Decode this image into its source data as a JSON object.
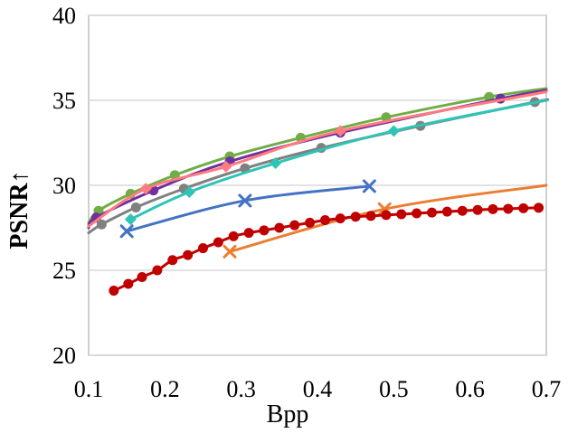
{
  "chart_data": {
    "type": "line",
    "title": "",
    "xlabel": "Bpp",
    "ylabel": "PSNR↑",
    "xlim": [
      0.1,
      0.7
    ],
    "ylim": [
      20,
      40
    ],
    "xticks": [
      "0.1",
      "0.2",
      "0.3",
      "0.4",
      "0.5",
      "0.6",
      "0.7"
    ],
    "yticks": [
      "20",
      "25",
      "30",
      "35",
      "40"
    ],
    "grid": "horizontal",
    "legend": "none",
    "series": [
      {
        "name": "green",
        "color": "#70ad47",
        "marker": "circle",
        "points": [
          [
            0.1,
            27.8
          ],
          [
            0.113,
            28.5
          ],
          [
            0.155,
            29.5
          ],
          [
            0.213,
            30.6
          ],
          [
            0.285,
            31.7
          ],
          [
            0.378,
            32.8
          ],
          [
            0.49,
            34.0
          ],
          [
            0.625,
            35.2
          ],
          [
            0.7,
            35.7
          ]
        ],
        "markers": [
          [
            0.113,
            28.5
          ],
          [
            0.155,
            29.5
          ],
          [
            0.213,
            30.6
          ],
          [
            0.285,
            31.7
          ],
          [
            0.378,
            32.8
          ],
          [
            0.49,
            34.0
          ],
          [
            0.625,
            35.2
          ]
        ]
      },
      {
        "name": "purple",
        "color": "#7030a0",
        "marker": "circle",
        "points": [
          [
            0.1,
            27.5
          ],
          [
            0.11,
            28.1
          ],
          [
            0.185,
            29.7
          ],
          [
            0.285,
            31.4
          ],
          [
            0.43,
            33.1
          ],
          [
            0.64,
            35.1
          ],
          [
            0.7,
            35.6
          ]
        ],
        "markers": [
          [
            0.11,
            28.1
          ],
          [
            0.185,
            29.7
          ],
          [
            0.285,
            31.4
          ],
          [
            0.43,
            33.1
          ],
          [
            0.64,
            35.1
          ]
        ]
      },
      {
        "name": "pink",
        "color": "#ff7c80",
        "marker": "diamond",
        "points": [
          [
            0.1,
            27.6
          ],
          [
            0.175,
            29.8
          ],
          [
            0.28,
            31.1
          ],
          [
            0.43,
            33.2
          ],
          [
            0.7,
            35.5
          ]
        ],
        "markers": [
          [
            0.175,
            29.8
          ],
          [
            0.28,
            31.1
          ],
          [
            0.43,
            33.2
          ]
        ]
      },
      {
        "name": "gray",
        "color": "#808080",
        "marker": "circle",
        "points": [
          [
            0.1,
            27.2
          ],
          [
            0.117,
            27.7
          ],
          [
            0.162,
            28.7
          ],
          [
            0.225,
            29.8
          ],
          [
            0.305,
            31.0
          ],
          [
            0.405,
            32.2
          ],
          [
            0.535,
            33.5
          ],
          [
            0.685,
            34.9
          ],
          [
            0.7,
            35.0
          ]
        ],
        "markers": [
          [
            0.117,
            27.7
          ],
          [
            0.162,
            28.7
          ],
          [
            0.225,
            29.8
          ],
          [
            0.305,
            31.0
          ],
          [
            0.405,
            32.2
          ],
          [
            0.535,
            33.5
          ],
          [
            0.685,
            34.9
          ]
        ]
      },
      {
        "name": "teal",
        "color": "#2ec4b6",
        "marker": "diamond",
        "points": [
          [
            0.155,
            28.0
          ],
          [
            0.232,
            29.6
          ],
          [
            0.345,
            31.3
          ],
          [
            0.5,
            33.2
          ],
          [
            0.7,
            35.0
          ]
        ],
        "markers": [
          [
            0.155,
            28.0
          ],
          [
            0.232,
            29.6
          ],
          [
            0.345,
            31.3
          ],
          [
            0.5,
            33.2
          ]
        ]
      },
      {
        "name": "blue",
        "color": "#4472c4",
        "marker": "x",
        "points": [
          [
            0.15,
            27.3
          ],
          [
            0.305,
            29.1
          ],
          [
            0.468,
            29.95
          ]
        ],
        "markers": [
          [
            0.15,
            27.3
          ],
          [
            0.305,
            29.1
          ],
          [
            0.468,
            29.95
          ]
        ]
      },
      {
        "name": "orange",
        "color": "#ed7d31",
        "marker": "x",
        "points": [
          [
            0.285,
            26.1
          ],
          [
            0.488,
            28.6
          ],
          [
            0.7,
            30.0
          ]
        ],
        "markers": [
          [
            0.285,
            26.1
          ],
          [
            0.488,
            28.6
          ]
        ]
      },
      {
        "name": "red",
        "color": "#c00000",
        "marker": "circle",
        "points": [
          [
            0.133,
            23.8
          ],
          [
            0.152,
            24.2
          ],
          [
            0.17,
            24.6
          ],
          [
            0.19,
            25.0
          ],
          [
            0.21,
            25.6
          ],
          [
            0.23,
            25.9
          ],
          [
            0.25,
            26.3
          ],
          [
            0.27,
            26.65
          ],
          [
            0.29,
            27.0
          ],
          [
            0.31,
            27.2
          ],
          [
            0.33,
            27.35
          ],
          [
            0.35,
            27.5
          ],
          [
            0.37,
            27.65
          ],
          [
            0.39,
            27.8
          ],
          [
            0.41,
            27.95
          ],
          [
            0.43,
            28.05
          ],
          [
            0.45,
            28.15
          ],
          [
            0.47,
            28.2
          ],
          [
            0.49,
            28.25
          ],
          [
            0.51,
            28.3
          ],
          [
            0.53,
            28.35
          ],
          [
            0.55,
            28.4
          ],
          [
            0.57,
            28.45
          ],
          [
            0.59,
            28.5
          ],
          [
            0.61,
            28.55
          ],
          [
            0.63,
            28.6
          ],
          [
            0.65,
            28.62
          ],
          [
            0.67,
            28.65
          ],
          [
            0.69,
            28.68
          ]
        ],
        "markers": "all"
      }
    ]
  }
}
